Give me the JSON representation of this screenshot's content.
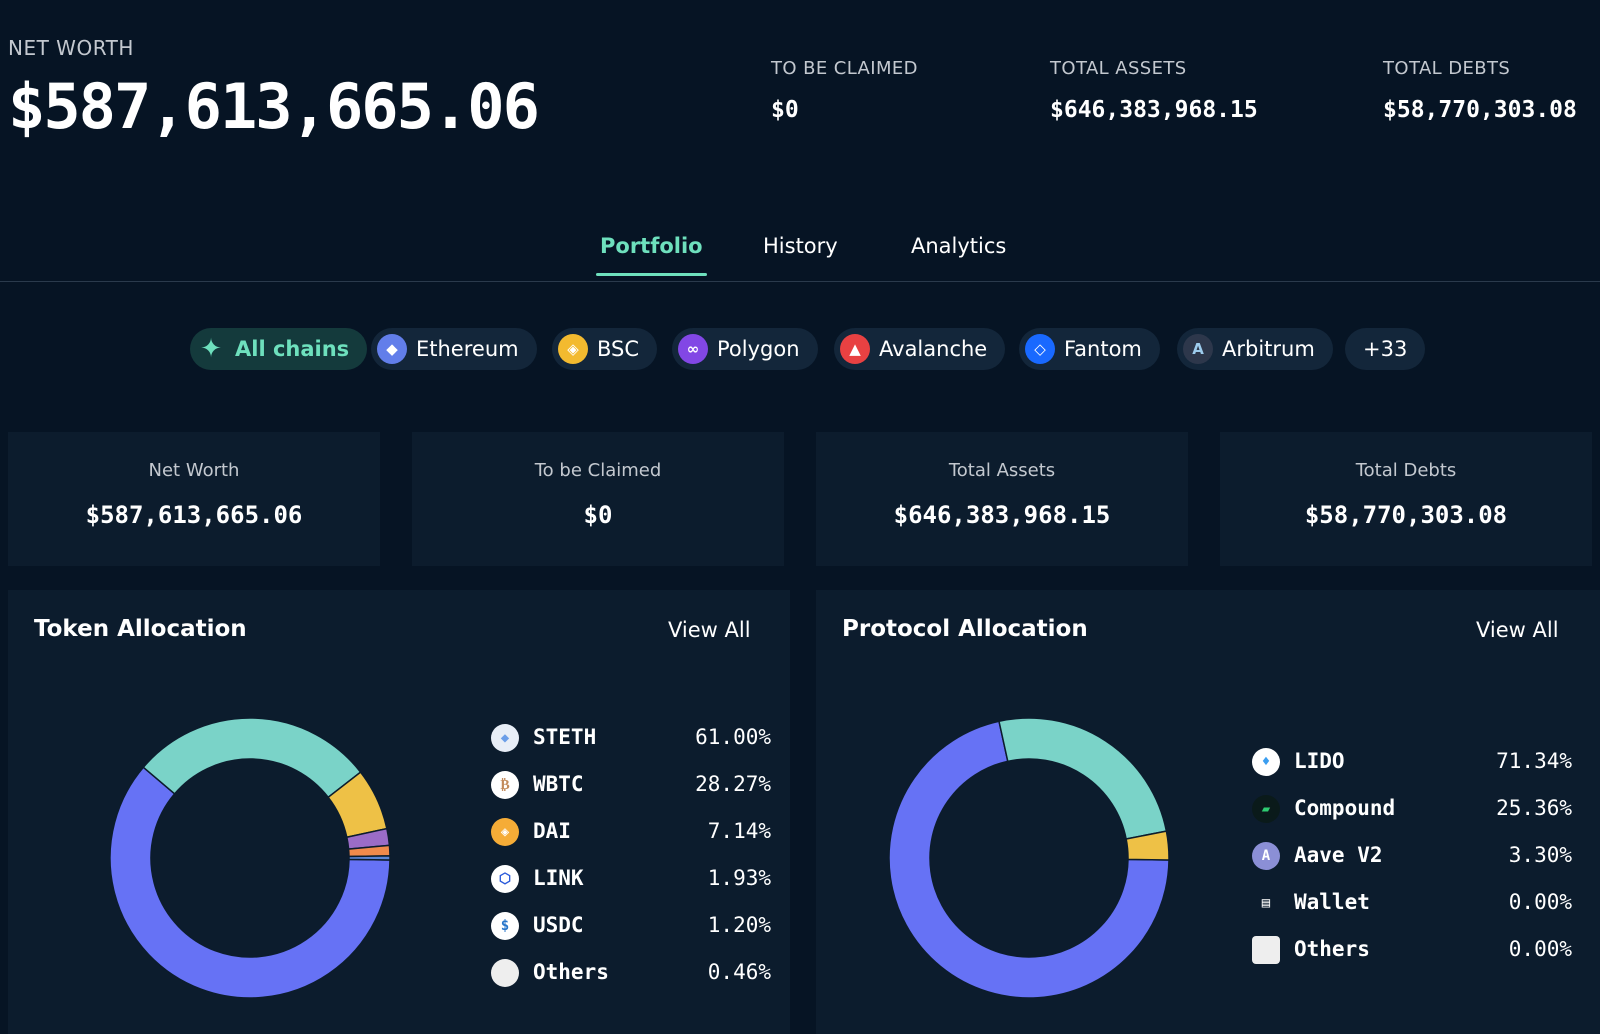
{
  "header": {
    "net_worth_label": "NET WORTH",
    "net_worth_value": "$587,613,665.06",
    "stats": [
      {
        "label": "TO BE CLAIMED",
        "value": "$0"
      },
      {
        "label": "TOTAL ASSETS",
        "value": "$646,383,968.15"
      },
      {
        "label": "TOTAL DEBTS",
        "value": "$58,770,303.08"
      }
    ]
  },
  "tabs": [
    {
      "label": "Portfolio",
      "active": true
    },
    {
      "label": "History",
      "active": false
    },
    {
      "label": "Analytics",
      "active": false
    }
  ],
  "chains": [
    {
      "label": "All chains",
      "icon": "sparkle-icon",
      "glyph": "✦",
      "color": "#6ee0bd",
      "active": true
    },
    {
      "label": "Ethereum",
      "icon": "ethereum-icon",
      "glyph": "◆",
      "color": "#627eea"
    },
    {
      "label": "BSC",
      "icon": "bsc-icon",
      "glyph": "◈",
      "color": "#f3ba2f"
    },
    {
      "label": "Polygon",
      "icon": "polygon-icon",
      "glyph": "∞",
      "color": "#8247e5"
    },
    {
      "label": "Avalanche",
      "icon": "avalanche-icon",
      "glyph": "▲",
      "color": "#e84142"
    },
    {
      "label": "Fantom",
      "icon": "fantom-icon",
      "glyph": "◇",
      "color": "#1969ff"
    },
    {
      "label": "Arbitrum",
      "icon": "arbitrum-icon",
      "glyph": "A",
      "color": "#2d374b"
    },
    {
      "label": "+33",
      "more": true
    }
  ],
  "summary_cards": [
    {
      "label": "Net Worth",
      "value": "$587,613,665.06"
    },
    {
      "label": "To be Claimed",
      "value": "$0"
    },
    {
      "label": "Total Assets",
      "value": "$646,383,968.15"
    },
    {
      "label": "Total Debts",
      "value": "$58,770,303.08"
    }
  ],
  "token_allocation": {
    "title": "Token Allocation",
    "view_all": "View All",
    "items": [
      {
        "name": "STETH",
        "percent": "61.00%",
        "value": 61.0,
        "color": "#6672f5",
        "icon": "steth-icon",
        "icon_bg": "#e8eef7",
        "icon_fg": "#6b9ee8",
        "glyph": "◆"
      },
      {
        "name": "WBTC",
        "percent": "28.27%",
        "value": 28.27,
        "color": "#7ad3c8",
        "icon": "wbtc-icon",
        "icon_bg": "#ffffff",
        "icon_fg": "#c28a5b",
        "glyph": "₿"
      },
      {
        "name": "DAI",
        "percent": "7.14%",
        "value": 7.14,
        "color": "#eec146",
        "icon": "dai-icon",
        "icon_bg": "#f5ac37",
        "icon_fg": "#ffffff",
        "glyph": "◈"
      },
      {
        "name": "LINK",
        "percent": "1.93%",
        "value": 1.93,
        "color": "#9b6cc7",
        "icon": "link-icon",
        "icon_bg": "#ffffff",
        "icon_fg": "#2a5ada",
        "glyph": "⬡"
      },
      {
        "name": "USDC",
        "percent": "1.20%",
        "value": 1.2,
        "color": "#f08a4b",
        "icon": "usdc-icon",
        "icon_bg": "#ffffff",
        "icon_fg": "#2775ca",
        "glyph": "$"
      },
      {
        "name": "Others",
        "percent": "0.46%",
        "value": 0.46,
        "color": "#5b86d6",
        "icon": "others-icon",
        "icon_bg": "#eeeeee",
        "icon_fg": "#eeeeee",
        "glyph": ""
      }
    ]
  },
  "protocol_allocation": {
    "title": "Protocol Allocation",
    "view_all": "View All",
    "items": [
      {
        "name": "LIDO",
        "percent": "71.34%",
        "value": 71.34,
        "color": "#6672f5",
        "icon": "lido-icon",
        "icon_bg": "#ffffff",
        "icon_fg": "#3b9ef0",
        "glyph": "♦"
      },
      {
        "name": "Compound",
        "percent": "25.36%",
        "value": 25.36,
        "color": "#7ad3c8",
        "icon": "compound-icon",
        "icon_bg": "#0a1a1a",
        "icon_fg": "#2ecc71",
        "glyph": "▰"
      },
      {
        "name": "Aave V2",
        "percent": "3.30%",
        "value": 3.3,
        "color": "#eec146",
        "icon": "aave-icon",
        "icon_bg": "#8b8fd6",
        "icon_fg": "#ffffff",
        "glyph": "A"
      },
      {
        "name": "Wallet",
        "percent": "0.00%",
        "value": 0,
        "color": "#cccccc",
        "icon": "wallet-icon",
        "icon_bg": "transparent",
        "icon_fg": "#ffffff",
        "glyph": "▤"
      },
      {
        "name": "Others",
        "percent": "0.00%",
        "value": 0,
        "color": "#eeeeee",
        "icon": "others-icon",
        "icon_bg": "#eeeeee",
        "icon_fg": "#eeeeee",
        "glyph": ""
      }
    ]
  }
}
